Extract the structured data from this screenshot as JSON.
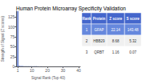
{
  "chart_data": {
    "type": "bar",
    "title": "Human Protein Microarray Specificity Validation",
    "xlabel": "Signal Rank (Top 40)",
    "ylabel": "Strength of Signal (Z scores)",
    "x": [
      1,
      2,
      3,
      4,
      5,
      6,
      7,
      8,
      9,
      10,
      11,
      12,
      13,
      14,
      15,
      16,
      17,
      18,
      19,
      20,
      21,
      22,
      23,
      24,
      25,
      26,
      27,
      28,
      29,
      30,
      31,
      32,
      33,
      34,
      35,
      36,
      37,
      38,
      39,
      40
    ],
    "values": [
      140,
      1.5,
      1.2,
      1.0,
      0.9,
      0.8,
      0.75,
      0.7,
      0.65,
      0.6,
      0.55,
      0.5,
      0.48,
      0.46,
      0.44,
      0.42,
      0.4,
      0.38,
      0.36,
      0.34,
      0.32,
      0.3,
      0.28,
      0.27,
      0.26,
      0.25,
      0.24,
      0.23,
      0.22,
      0.21,
      0.2,
      0.19,
      0.18,
      0.17,
      0.16,
      0.15,
      0.14,
      0.13,
      0.12,
      0.11
    ],
    "color": "#3355bb",
    "xlim": [
      0,
      41
    ],
    "xticks": [
      1,
      10,
      20,
      30,
      40
    ],
    "ylim": [
      0,
      140
    ],
    "yticks": [
      0,
      25,
      50,
      75,
      100,
      125
    ],
    "grid": false,
    "table": {
      "headers": [
        "Rank",
        "Protein",
        "Z score",
        "S score"
      ],
      "rows": [
        [
          "1",
          "GFAP",
          "22.14",
          "143.48"
        ],
        [
          "2",
          "HBB29",
          "8.68",
          "5.32"
        ],
        [
          "3",
          "QRBT",
          "1.16",
          "0.07"
        ]
      ],
      "header_color": "#4466cc",
      "header_text_color": "#ffffff",
      "row_colors": [
        "#6688dd",
        "#f0f0f0",
        "#ffffff"
      ],
      "row_text_colors": [
        "#ffffff",
        "#333333",
        "#333333"
      ]
    }
  }
}
